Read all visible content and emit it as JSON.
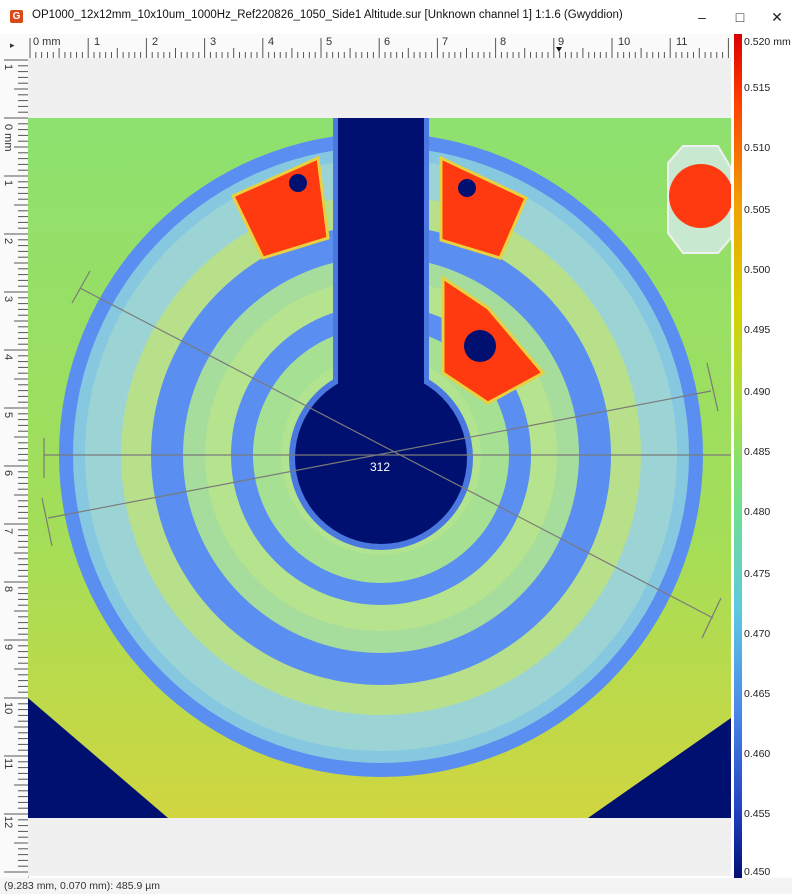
{
  "window": {
    "title": "OP1000_12x12mm_10x10um_1000Hz_Ref220826_1050_Side1 Altitude.sur [Unknown channel 1] 1:1.6 (Gwyddion)",
    "minimize": "–",
    "maximize": "□",
    "close": "✕",
    "app_icon": "G"
  },
  "ruler_h": {
    "labels": [
      "0 mm",
      "1",
      "2",
      "3",
      "4",
      "5",
      "6",
      "7",
      "8",
      "9",
      "10",
      "11"
    ]
  },
  "ruler_v": {
    "top_label": "1",
    "labels": [
      "0 mm",
      "1",
      "2",
      "3",
      "4",
      "5",
      "6",
      "7",
      "8",
      "9",
      "10",
      "11",
      "12"
    ]
  },
  "image": {
    "measurement_label": "312"
  },
  "scale": {
    "labels": [
      "0.520 mm",
      "0.515",
      "0.510",
      "0.505",
      "0.500",
      "0.495",
      "0.490",
      "0.485",
      "0.480",
      "0.475",
      "0.470",
      "0.465",
      "0.460",
      "0.455",
      "0.450"
    ]
  },
  "status": {
    "text": "(9.283 mm, 0.070 mm): 485.9 µm"
  },
  "colors": {
    "background": "#f0f0f0",
    "surface": "#8ee070",
    "low": "#001070",
    "ring": "#4a88e8",
    "high": "#ff3a10"
  }
}
